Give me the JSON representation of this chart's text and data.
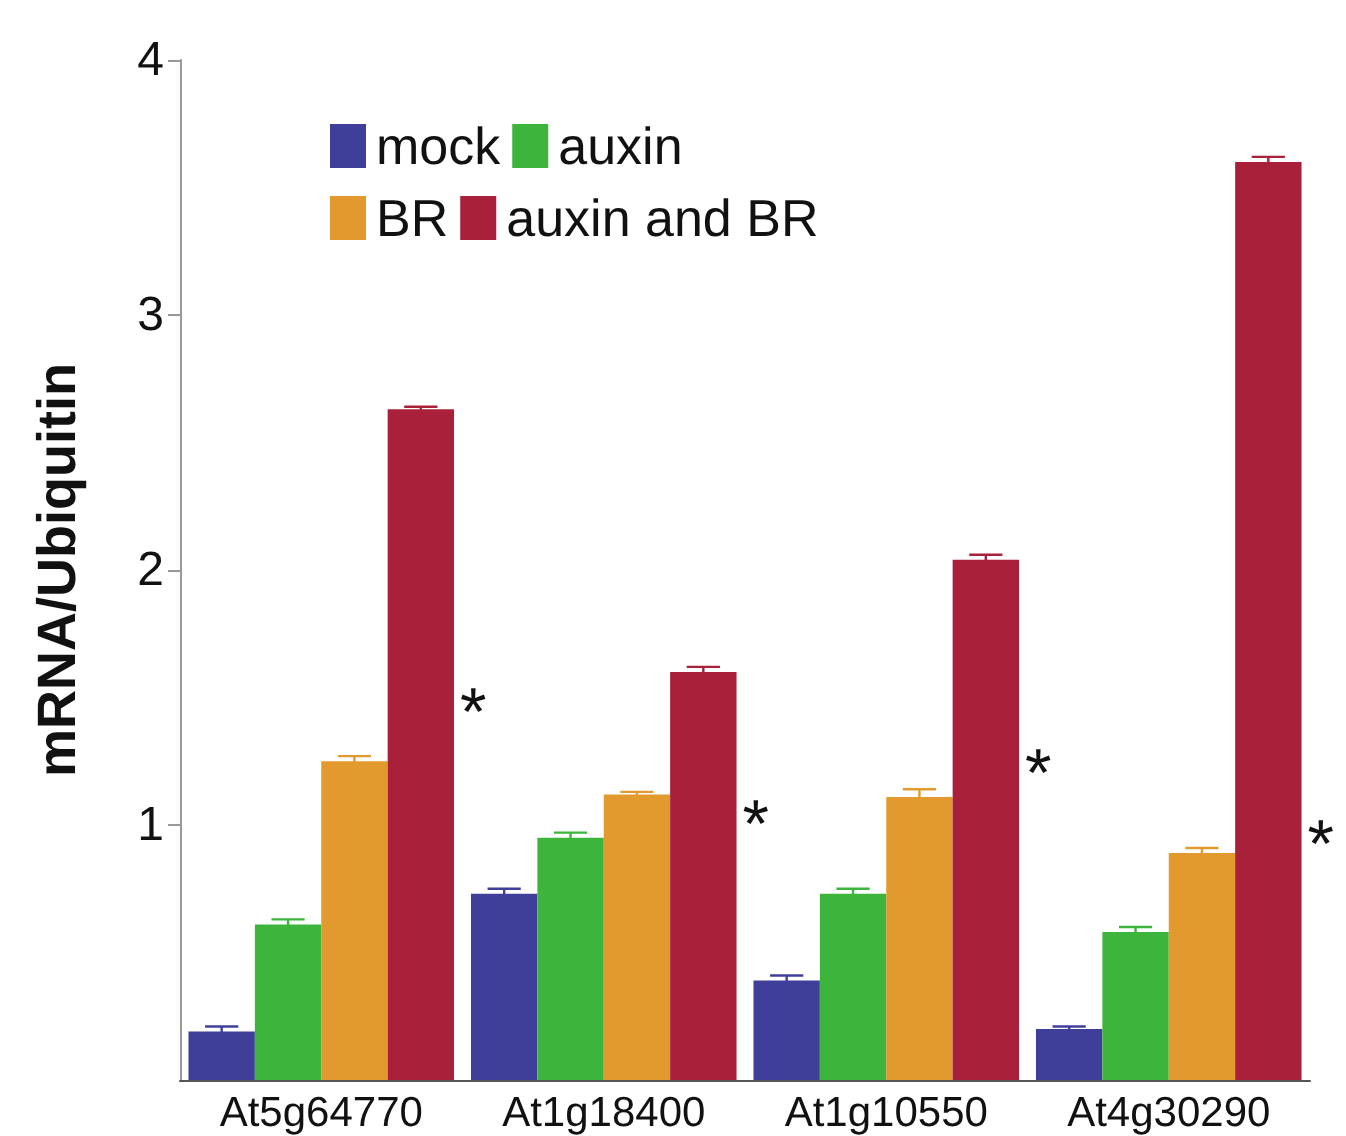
{
  "chart_data": {
    "type": "bar",
    "ylabel": "mRNA/Ubiquitin",
    "categories": [
      "At5g64770",
      "At1g18400",
      "At1g10550",
      "At4g30290"
    ],
    "series": [
      {
        "name": "mock",
        "color": "#3f3f9a",
        "values": [
          0.19,
          0.73,
          0.39,
          0.2
        ],
        "errors": [
          0.02,
          0.02,
          0.02,
          0.01
        ]
      },
      {
        "name": "auxin",
        "color": "#3db53d",
        "values": [
          0.61,
          0.95,
          0.73,
          0.58
        ],
        "errors": [
          0.02,
          0.02,
          0.02,
          0.02
        ]
      },
      {
        "name": "BR",
        "color": "#e29a2e",
        "values": [
          1.25,
          1.12,
          1.11,
          0.89
        ],
        "errors": [
          0.02,
          0.01,
          0.03,
          0.02
        ]
      },
      {
        "name": "auxin and BR",
        "color": "#a8203a",
        "values": [
          2.63,
          1.6,
          2.04,
          3.6
        ],
        "errors": [
          0.01,
          0.02,
          0.02,
          0.02
        ]
      }
    ],
    "ylim": [
      0,
      4
    ],
    "yticks": [
      1,
      2,
      3,
      4
    ],
    "grid": false,
    "legend": "top left",
    "annotations": [
      "*",
      "*",
      "*",
      "*"
    ]
  }
}
